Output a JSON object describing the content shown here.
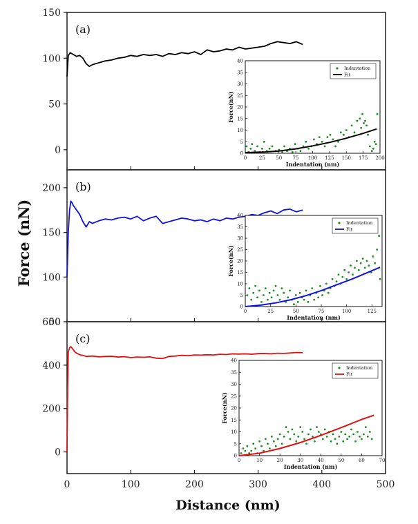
{
  "chart_data": [
    {
      "type": "line",
      "panel_label": "(a)",
      "ylim": [
        -22,
        150
      ],
      "yticks": [
        0,
        50,
        100,
        150
      ],
      "color": "#000000",
      "series": [
        {
          "name": "Force",
          "x": [
            0,
            2,
            5,
            10,
            15,
            20,
            25,
            30,
            35,
            40,
            50,
            60,
            70,
            80,
            90,
            100,
            110,
            120,
            130,
            140,
            150,
            160,
            170,
            180,
            190,
            200,
            210,
            220,
            230,
            240,
            250,
            260,
            270,
            280,
            290,
            300,
            310,
            320,
            330,
            340,
            350,
            360,
            370
          ],
          "y": [
            80,
            103,
            106,
            104,
            102,
            103,
            100,
            94,
            91,
            93,
            95,
            97,
            98,
            100,
            101,
            103,
            102,
            104,
            103,
            104,
            102,
            105,
            104,
            106,
            105,
            107,
            104,
            109,
            107,
            108,
            110,
            109,
            112,
            110,
            111,
            112,
            113,
            116,
            118,
            117,
            116,
            118,
            115
          ]
        }
      ],
      "inset": {
        "xlabel": "Indentation (nm)",
        "ylabel": "Force(nN)",
        "xlim": [
          0,
          200
        ],
        "ylim": [
          0,
          40
        ],
        "xticks": [
          0,
          25,
          50,
          75,
          100,
          125,
          150,
          175,
          200
        ],
        "yticks": [
          0,
          5,
          10,
          15,
          20,
          25,
          30,
          35,
          40
        ],
        "legend": [
          "Indentation",
          "Fit"
        ],
        "fit": {
          "x": [
            0,
            25,
            50,
            75,
            100,
            125,
            150,
            175,
            195
          ],
          "y": [
            0.3,
            0.5,
            1.0,
            1.9,
            3.2,
            4.7,
            6.5,
            8.6,
            10.5
          ]
        },
        "points": {
          "x": [
            2,
            5,
            8,
            10,
            14,
            18,
            22,
            25,
            28,
            32,
            36,
            40,
            45,
            50,
            55,
            58,
            62,
            66,
            70,
            74,
            78,
            82,
            86,
            90,
            94,
            98,
            102,
            106,
            110,
            114,
            118,
            122,
            126,
            130,
            134,
            138,
            142,
            146,
            150,
            154,
            158,
            162,
            166,
            170,
            172,
            174,
            176,
            178,
            180,
            182,
            185,
            188,
            190,
            192,
            194,
            196
          ],
          "y": [
            3,
            0.5,
            2,
            4,
            1,
            3,
            0.5,
            2,
            5,
            1,
            2,
            3,
            1,
            1.5,
            0.5,
            3,
            1,
            2,
            0.5,
            4,
            2,
            1,
            3,
            5,
            2,
            3,
            6,
            4,
            7,
            5,
            3,
            7,
            8,
            6,
            3,
            5,
            9,
            8,
            10,
            7,
            12,
            9,
            14,
            15,
            11,
            17,
            13,
            14,
            12,
            8,
            3,
            1,
            2,
            5,
            4,
            17
          ]
        }
      }
    },
    {
      "type": "line",
      "panel_label": "(b)",
      "ylim": [
        50,
        220
      ],
      "yticks": [
        50,
        100,
        150,
        200
      ],
      "color": "#1010e0",
      "series": [
        {
          "name": "Force",
          "x": [
            0,
            2,
            4,
            6,
            8,
            10,
            12,
            15,
            20,
            25,
            30,
            35,
            40,
            50,
            60,
            70,
            80,
            90,
            100,
            110,
            120,
            130,
            140,
            150,
            160,
            170,
            180,
            190,
            200,
            210,
            220,
            230,
            240,
            250,
            260,
            270,
            280,
            290,
            300,
            310,
            320,
            330,
            340,
            350,
            360,
            370
          ],
          "y": [
            100,
            150,
            175,
            185,
            183,
            180,
            178,
            175,
            170,
            162,
            156,
            162,
            160,
            163,
            165,
            164,
            166,
            167,
            165,
            168,
            163,
            166,
            168,
            160,
            162,
            164,
            166,
            165,
            163,
            164,
            162,
            165,
            163,
            166,
            165,
            167,
            168,
            170,
            169,
            172,
            174,
            171,
            175,
            176,
            173,
            175
          ]
        }
      ],
      "inset": {
        "xlabel": "Indentation (nm)",
        "ylabel": "Force(nN)",
        "xlim": [
          0,
          135
        ],
        "ylim": [
          0,
          40
        ],
        "xticks": [
          0,
          25,
          50,
          75,
          100,
          125
        ],
        "yticks": [
          0,
          5,
          10,
          15,
          20,
          25,
          30,
          35,
          40
        ],
        "legend": [
          "Indentation",
          "Fit"
        ],
        "fit": {
          "x": [
            0,
            15,
            30,
            45,
            60,
            75,
            90,
            105,
            120,
            133
          ],
          "y": [
            0,
            0.6,
            1.6,
            3.0,
            4.8,
            7.0,
            9.5,
            12.0,
            14.8,
            17.2
          ]
        },
        "points": {
          "x": [
            2,
            4,
            6,
            8,
            10,
            12,
            14,
            16,
            18,
            20,
            22,
            24,
            26,
            28,
            30,
            32,
            34,
            36,
            38,
            40,
            42,
            44,
            46,
            48,
            50,
            52,
            54,
            56,
            58,
            60,
            62,
            64,
            66,
            68,
            70,
            72,
            74,
            76,
            78,
            80,
            82,
            84,
            86,
            88,
            90,
            92,
            94,
            96,
            98,
            100,
            102,
            104,
            106,
            108,
            110,
            112,
            114,
            116,
            118,
            120,
            122,
            124,
            126,
            128,
            130,
            132,
            133
          ],
          "y": [
            5,
            8,
            3,
            6,
            9,
            4,
            7,
            2,
            5,
            8,
            3,
            6,
            4,
            7,
            9,
            5,
            3,
            8,
            6,
            2,
            4,
            7,
            3,
            1,
            5,
            2,
            6,
            4,
            3,
            7,
            2,
            5,
            8,
            3,
            6,
            4,
            9,
            5,
            7,
            10,
            6,
            8,
            12,
            9,
            11,
            14,
            10,
            13,
            16,
            12,
            15,
            18,
            14,
            17,
            20,
            16,
            19,
            21,
            17,
            20,
            18,
            15,
            22,
            19,
            25,
            31,
            12
          ]
        }
      }
    },
    {
      "type": "line",
      "panel_label": "(c)",
      "xlabel": "Distance (nm)",
      "ylabel": "Force (nN)",
      "xlim": [
        0,
        500
      ],
      "xticks": [
        0,
        100,
        200,
        300,
        400,
        500
      ],
      "ylim": [
        -100,
        600
      ],
      "yticks": [
        0,
        200,
        400,
        600
      ],
      "color": "#e01010",
      "series": [
        {
          "name": "Force",
          "x": [
            0,
            1,
            2,
            4,
            6,
            8,
            10,
            12,
            15,
            20,
            25,
            30,
            40,
            50,
            60,
            70,
            80,
            90,
            100,
            110,
            120,
            130,
            140,
            150,
            160,
            170,
            180,
            190,
            200,
            210,
            220,
            230,
            240,
            250,
            260,
            270,
            280,
            290,
            300,
            310,
            320,
            330,
            340,
            350,
            360,
            370
          ],
          "y": [
            0,
            300,
            460,
            480,
            485,
            478,
            470,
            462,
            455,
            448,
            445,
            440,
            442,
            438,
            440,
            441,
            437,
            439,
            435,
            437,
            436,
            438,
            432,
            430,
            440,
            442,
            445,
            443,
            447,
            446,
            448,
            447,
            450,
            449,
            452,
            451,
            452,
            450,
            453,
            454,
            452,
            455,
            454,
            456,
            458,
            457
          ]
        }
      ],
      "inset": {
        "xlabel": "Indentation (nm)",
        "ylabel": "Force(nN)",
        "xlim": [
          0,
          70
        ],
        "ylim": [
          0,
          40
        ],
        "xticks": [
          0,
          10,
          20,
          30,
          40,
          50,
          60,
          70
        ],
        "yticks": [
          0,
          5,
          10,
          15,
          20,
          25,
          30,
          35,
          40
        ],
        "legend": [
          "Indentation",
          "Fit"
        ],
        "fit": {
          "x": [
            0,
            10,
            20,
            30,
            40,
            50,
            60,
            66
          ],
          "y": [
            0,
            1.0,
            3.0,
            5.5,
            8.5,
            11.8,
            15.2,
            17.0
          ]
        },
        "points": {
          "x": [
            1,
            2,
            3,
            4,
            5,
            6,
            7,
            8,
            9,
            10,
            11,
            12,
            13,
            14,
            15,
            16,
            17,
            18,
            19,
            20,
            21,
            22,
            23,
            24,
            25,
            26,
            27,
            28,
            29,
            30,
            31,
            32,
            33,
            34,
            35,
            36,
            37,
            38,
            39,
            40,
            41,
            42,
            43,
            44,
            45,
            46,
            47,
            48,
            49,
            50,
            51,
            52,
            53,
            54,
            55,
            56,
            57,
            58,
            59,
            60,
            61,
            62,
            63,
            64,
            65
          ],
          "y": [
            1,
            3,
            2,
            4,
            1,
            2,
            5,
            3,
            1,
            6,
            4,
            2,
            7,
            5,
            3,
            8,
            6,
            4,
            7,
            9,
            5,
            8,
            12,
            10,
            7,
            11,
            9,
            6,
            8,
            12,
            10,
            7,
            5,
            9,
            11,
            8,
            6,
            12,
            10,
            9,
            7,
            11,
            8,
            10,
            6,
            9,
            7,
            5,
            8,
            10,
            6,
            9,
            7,
            8,
            11,
            9,
            6,
            10,
            8,
            7,
            9,
            12,
            8,
            10,
            7
          ]
        }
      }
    }
  ]
}
